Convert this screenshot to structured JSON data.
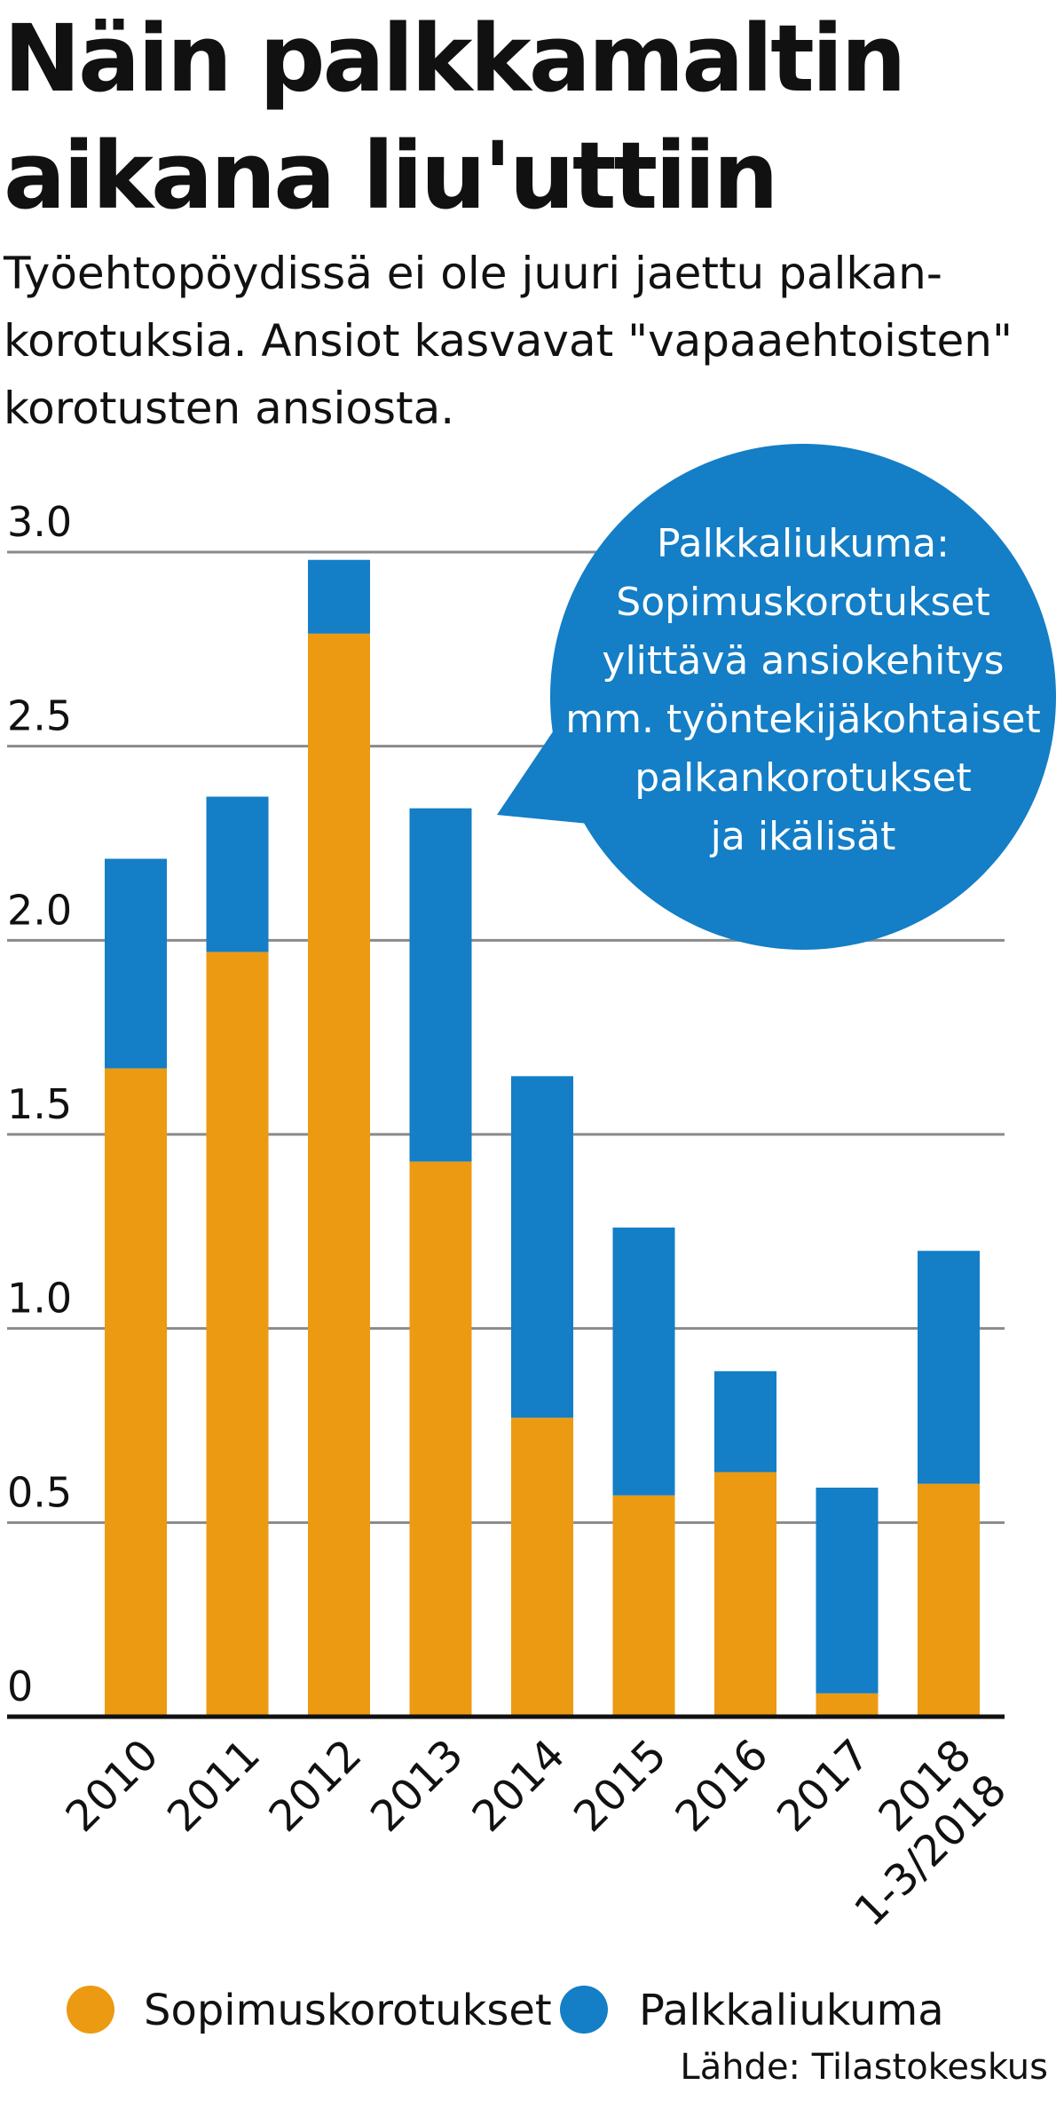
{
  "title_lines": [
    "Näin palkkamaltin",
    "aikana liu'uttiin"
  ],
  "subtitle_lines": [
    "Työehtopöydissä ei ole juuri jaettu palkan-",
    "korotuksia. Ansiot kasvavat \"vapaaehtoisten\"",
    "korotusten ansiosta."
  ],
  "callout_lines": [
    "Palkkaliukuma:",
    "Sopimuskorotukset",
    "ylittävä ansiokehitys",
    "mm. työntekijäkohtaiset",
    "palkankorotukset",
    "ja ikälisät"
  ],
  "source": "Lähde: Tilastokeskus",
  "colors": {
    "sopimuskorotukset": "#ec9a12",
    "palkkaliukuma": "#147ec6",
    "gridline": "#8a8a8a",
    "baseline": "#111111",
    "text": "#111111"
  },
  "chart_data": {
    "type": "bar",
    "stacked": true,
    "categories": [
      "2010",
      "2011",
      "2012",
      "2013",
      "2014",
      "2015",
      "2016",
      "2017",
      "1-3/2018"
    ],
    "series": [
      {
        "name": "Sopimuskorotukset",
        "color": "#ec9a12",
        "values": [
          1.67,
          1.97,
          2.79,
          1.43,
          0.77,
          0.57,
          0.63,
          0.06,
          0.6
        ]
      },
      {
        "name": "Palkkaliukuma",
        "color": "#147ec6",
        "values": [
          0.54,
          0.4,
          0.19,
          0.91,
          0.88,
          0.69,
          0.26,
          0.53,
          0.6
        ]
      }
    ],
    "ylim": [
      0,
      3.0
    ],
    "yticks": [
      0,
      0.5,
      1.0,
      1.5,
      2.0,
      2.5,
      3.0
    ],
    "ytick_labels": [
      "0",
      "0.5",
      "1.0",
      "1.5",
      "2.0",
      "2.5",
      "3.0"
    ],
    "grid": true,
    "legend_position": "bottom",
    "xlabel": "",
    "ylabel": ""
  }
}
